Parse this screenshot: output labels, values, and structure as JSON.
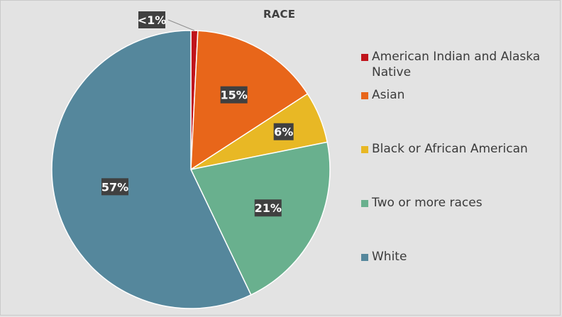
{
  "colors": {
    "background": "#e3e3e3",
    "label_box": "#404040",
    "label_text": "#ffffff"
  },
  "chart_data": {
    "type": "pie",
    "title": "RACE",
    "categories": [
      "American Indian and Alaska Native",
      "Asian",
      "Black or African American",
      "Two or more races",
      "White"
    ],
    "values": [
      0.8,
      15,
      6,
      21,
      57
    ],
    "data_labels": [
      "<1%",
      "15%",
      "6%",
      "21%",
      "57%"
    ],
    "colors": [
      "#c0141c",
      "#e8661a",
      "#e8b825",
      "#69b08e",
      "#55879c"
    ],
    "legend_position": "right",
    "start_angle_deg": 0,
    "direction": "clockwise"
  }
}
